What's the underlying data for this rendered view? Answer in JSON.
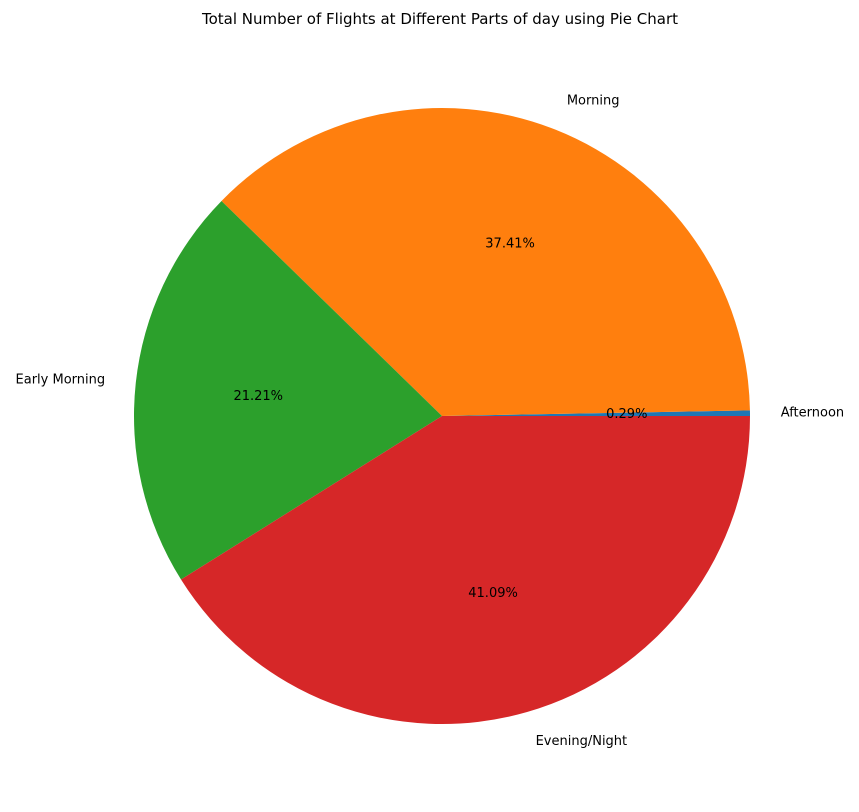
{
  "chart_data": {
    "type": "pie",
    "title": "Total Number of Flights at Different Parts of day using Pie Chart",
    "categories": [
      "Afternoon",
      "Morning",
      "Early Morning",
      "Evening/Night"
    ],
    "values": [
      0.29,
      37.41,
      21.21,
      41.09
    ],
    "value_labels": [
      "0.29%",
      "37.41%",
      "21.21%",
      "41.09%"
    ],
    "colors": [
      "#1f77b4",
      "#ff7f0e",
      "#2ca02c",
      "#d62728"
    ],
    "start_angle_deg": 0,
    "direction": "counterclockwise",
    "legend": "none"
  }
}
